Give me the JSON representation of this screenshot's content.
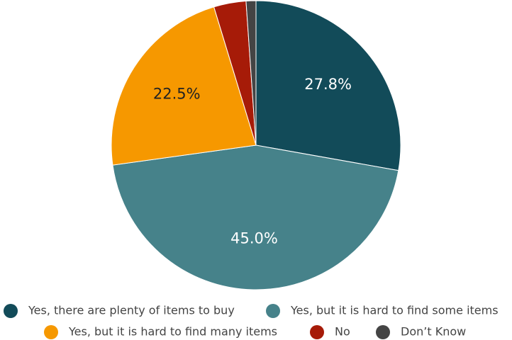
{
  "chart_data": {
    "type": "pie",
    "categories": [
      "Yes, there are plenty of items to buy",
      "Yes, but it is hard to find some items",
      "Yes, but it is hard to find many items",
      "No",
      "Don’t Know"
    ],
    "values": [
      27.8,
      45.0,
      22.5,
      3.6,
      1.1
    ],
    "value_labels": [
      "27.8%",
      "45.0%",
      "22.5%",
      null,
      null
    ],
    "colors": [
      "#124b59",
      "#46828a",
      "#f69800",
      "#a61b08",
      "#444444"
    ],
    "legend": "bottom"
  }
}
